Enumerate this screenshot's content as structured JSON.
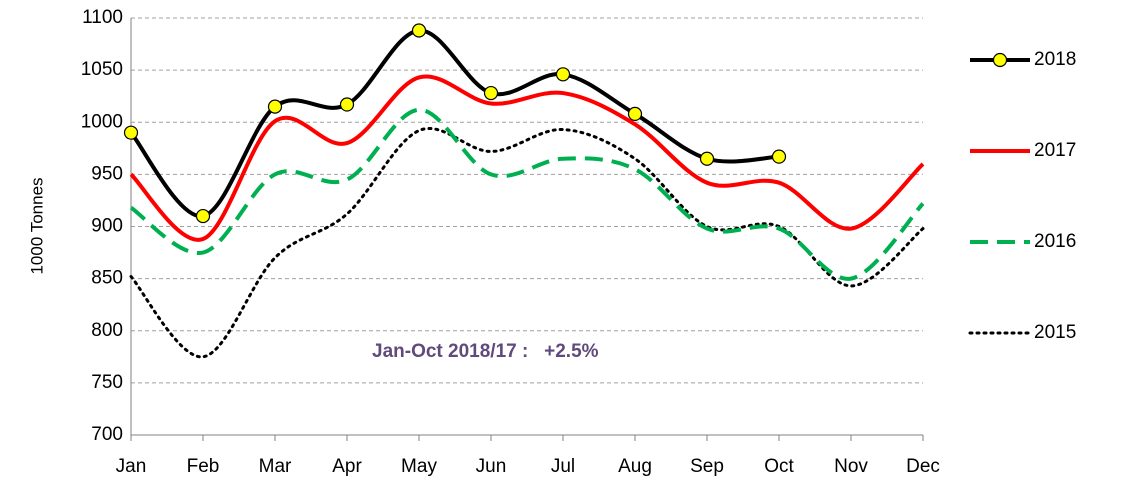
{
  "chart_data": {
    "type": "line",
    "y_label": "1000 Tonnes",
    "annotation": "Jan-Oct 2018/17 :   +2.5%",
    "categories": [
      "Jan",
      "Feb",
      "Mar",
      "Apr",
      "May",
      "Jun",
      "Jul",
      "Aug",
      "Sep",
      "Oct",
      "Nov",
      "Dec"
    ],
    "ylim": [
      700,
      1100
    ],
    "yticks": [
      700,
      750,
      800,
      850,
      900,
      950,
      1000,
      1050,
      1100
    ],
    "grid": true,
    "legend": "right",
    "series": [
      {
        "name": "2018",
        "color": "#000000",
        "line_style": "solid",
        "markers": true,
        "values": [
          990,
          910,
          1015,
          1017,
          1088,
          1028,
          1046,
          1008,
          965,
          967,
          null,
          null
        ]
      },
      {
        "name": "2017",
        "color": "#ff0000",
        "line_style": "solid",
        "markers": false,
        "values": [
          950,
          888,
          1001,
          980,
          1043,
          1018,
          1028,
          998,
          942,
          942,
          898,
          960
        ]
      },
      {
        "name": "2016",
        "color": "#00b050",
        "line_style": "dashed",
        "markers": false,
        "values": [
          918,
          875,
          950,
          945,
          1012,
          950,
          965,
          955,
          898,
          898,
          850,
          922
        ]
      },
      {
        "name": "2015",
        "color": "#000000",
        "line_style": "dotted",
        "markers": false,
        "values": [
          852,
          775,
          870,
          912,
          992,
          972,
          993,
          965,
          900,
          900,
          843,
          898
        ]
      }
    ]
  }
}
